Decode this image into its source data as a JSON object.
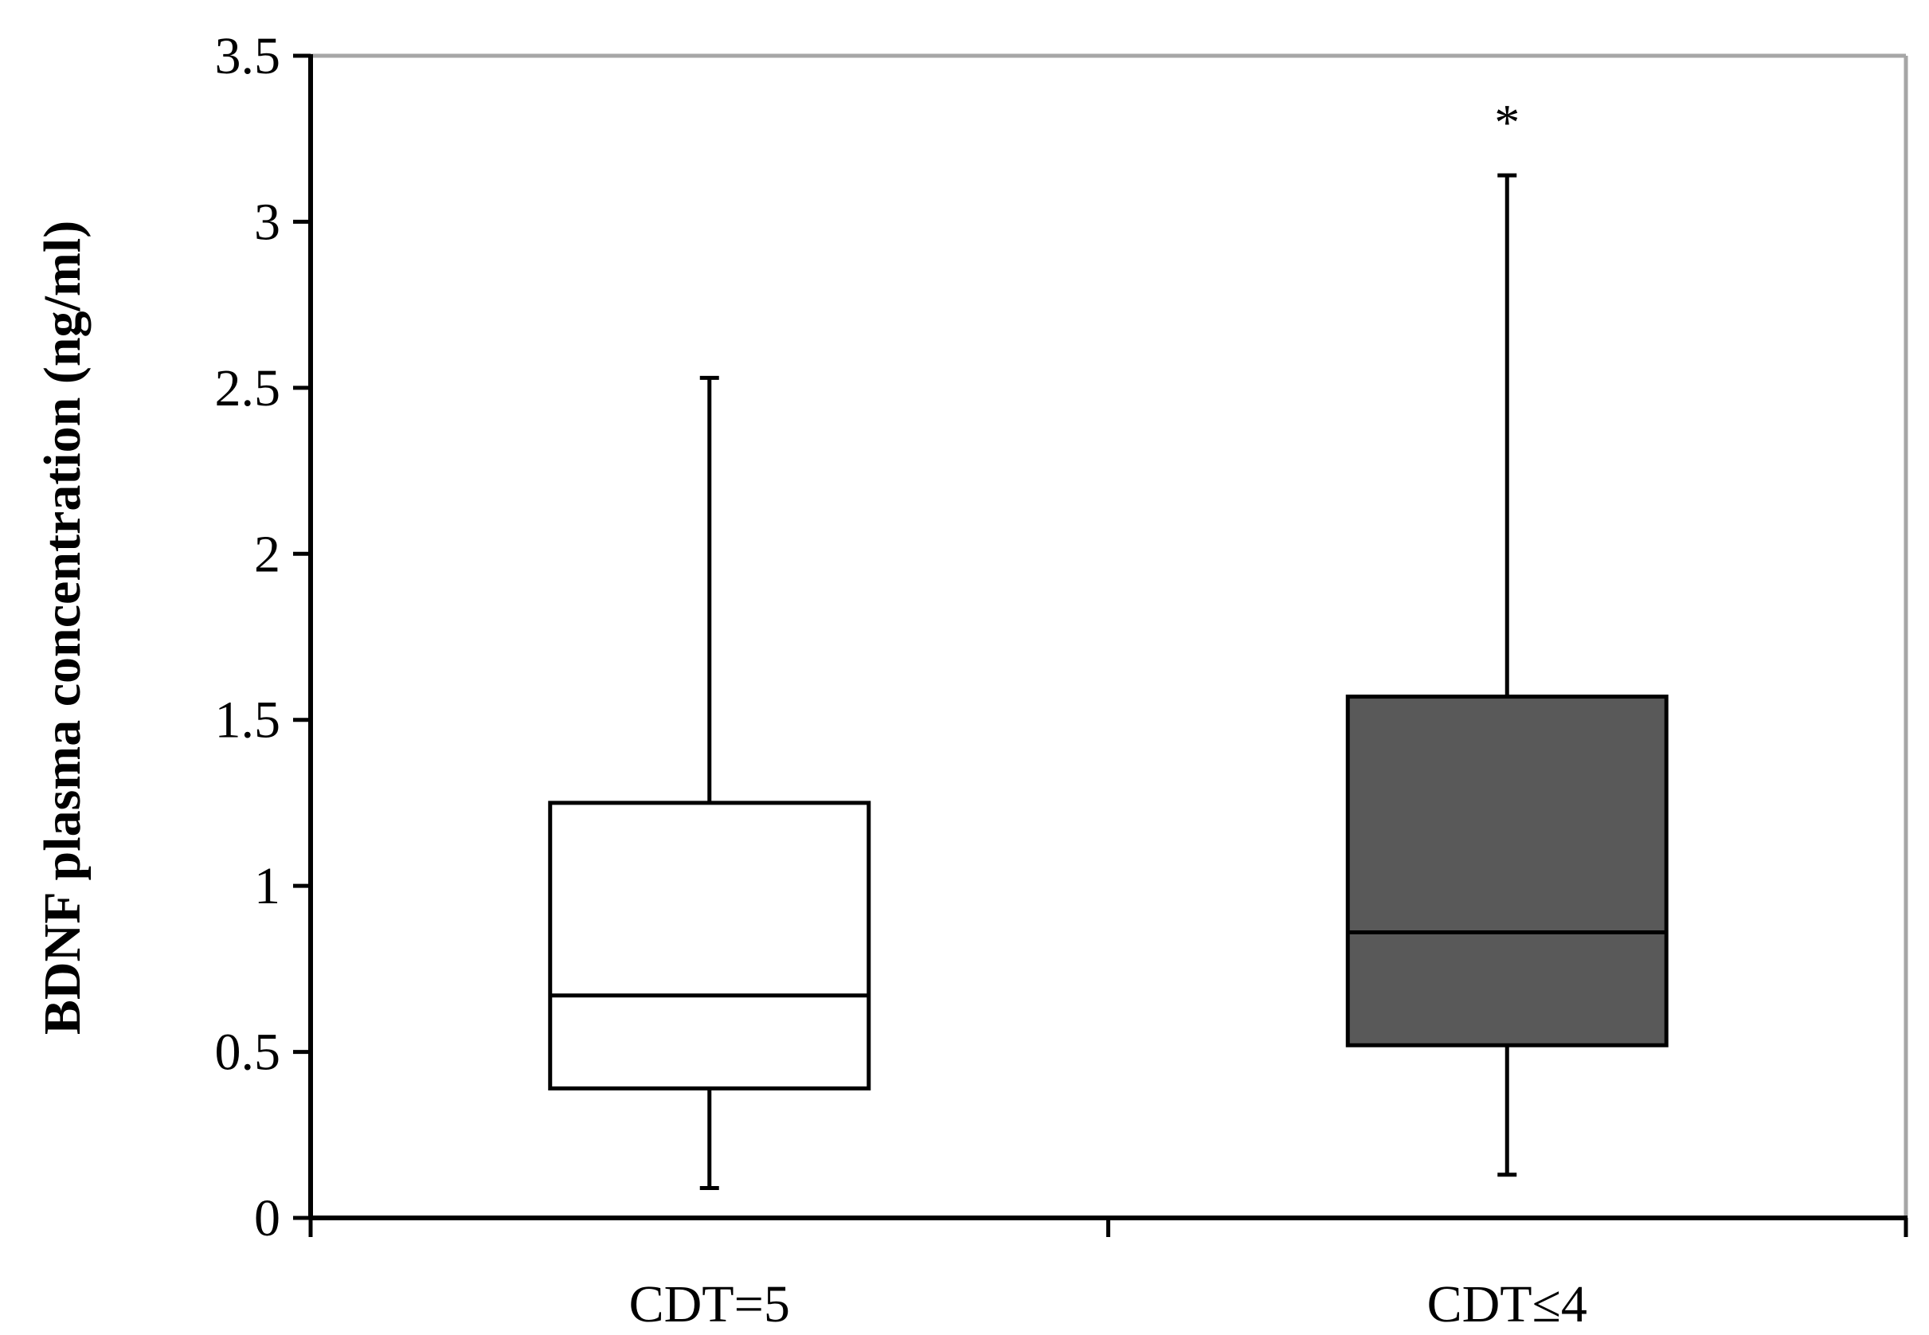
{
  "chart_data": {
    "type": "box",
    "ylabel": "BDNF plasma concentration (ng/ml)",
    "xlabel": "",
    "ylim": [
      0,
      3.5
    ],
    "yticks": [
      0,
      0.5,
      1,
      1.5,
      2,
      2.5,
      3,
      3.5
    ],
    "ytick_labels": [
      "0",
      "0.5",
      "1",
      "1.5",
      "2",
      "2.5",
      "3",
      "3.5"
    ],
    "grid": false,
    "categories": [
      "CDT=5",
      "CDT≤4"
    ],
    "boxes": [
      {
        "category": "CDT=5",
        "min": 0.09,
        "q1": 0.39,
        "median": 0.67,
        "q3": 1.25,
        "max": 2.53,
        "fill": "#ffffff",
        "annotation": ""
      },
      {
        "category": "CDT≤4",
        "min": 0.13,
        "q1": 0.52,
        "median": 0.86,
        "q3": 1.57,
        "max": 3.14,
        "fill": "#595959",
        "annotation": "*"
      }
    ],
    "colors": {
      "axis": "#000000",
      "frame": "#a6a6a6"
    }
  }
}
